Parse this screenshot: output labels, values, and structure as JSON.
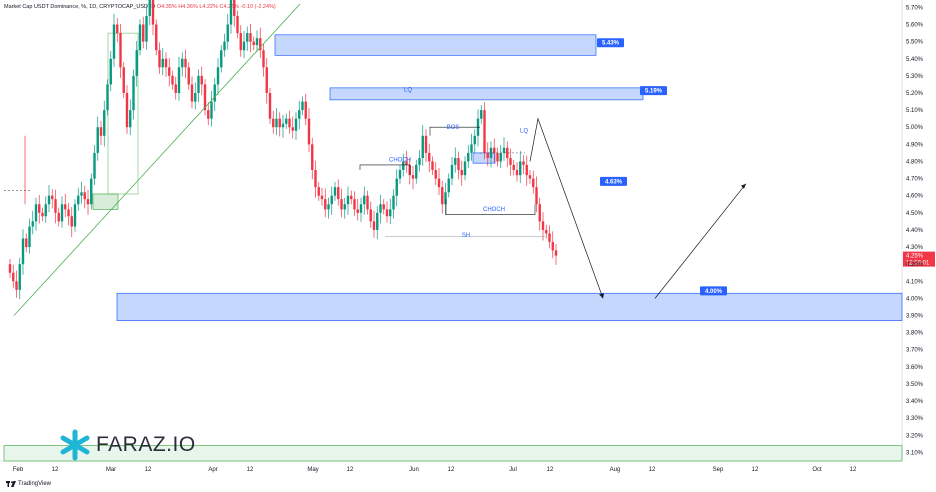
{
  "legend": {
    "title": "Market Cap USDT Dominance, %, 1D, CRYPTOCAP_USDTD",
    "ohlc": "O4.35% H4.36% L4.22% C4.25% -0.10 (-2.24%)"
  },
  "brand": {
    "name": "FARAZ.IO",
    "platform": "TradingView"
  },
  "colors": {
    "up": "#089981",
    "down": "#f23645",
    "zone_fill": "#bbd0fb",
    "zone_stroke": "#2962ff",
    "label_bg": "#2962ff",
    "trendline": "#4caf50"
  },
  "chart_data": {
    "type": "candlestick",
    "title": "Market Cap USDT Dominance, %, 1D, CRYPTOCAP_USDTD",
    "ylim": [
      3.05,
      5.72
    ],
    "y_ticks": [
      "5.70%",
      "5.60%",
      "5.50%",
      "5.40%",
      "5.30%",
      "5.20%",
      "5.10%",
      "5.00%",
      "4.90%",
      "4.80%",
      "4.70%",
      "4.60%",
      "4.50%",
      "4.40%",
      "4.30%",
      "4.20%",
      "4.10%",
      "4.00%",
      "3.90%",
      "3.80%",
      "3.70%",
      "3.60%",
      "3.50%",
      "3.40%",
      "3.30%",
      "3.20%",
      "3.10%"
    ],
    "x_ticks": [
      "Feb",
      "12",
      "Mar",
      "12",
      "Apr",
      "12",
      "May",
      "12",
      "Jun",
      "12",
      "Jul",
      "12",
      "Aug",
      "12",
      "Sep",
      "12",
      "Oct",
      "12"
    ],
    "current_price_label": "4.25%",
    "countdown_label": "12:56:01",
    "closes": [
      4.15,
      4.1,
      4.05,
      4.2,
      4.35,
      4.3,
      4.42,
      4.45,
      4.55,
      4.5,
      4.48,
      4.55,
      4.6,
      4.58,
      4.5,
      4.45,
      4.55,
      4.52,
      4.48,
      4.42,
      4.55,
      4.6,
      4.62,
      4.58,
      4.55,
      4.7,
      4.85,
      5.0,
      4.95,
      5.1,
      5.25,
      5.4,
      5.6,
      5.55,
      5.35,
      5.2,
      5.0,
      5.1,
      5.3,
      5.45,
      5.6,
      5.5,
      5.65,
      5.75,
      5.6,
      5.45,
      5.35,
      5.4,
      5.35,
      5.3,
      5.25,
      5.2,
      5.35,
      5.4,
      5.35,
      5.25,
      5.15,
      5.2,
      5.3,
      5.25,
      5.1,
      5.05,
      5.15,
      5.25,
      5.35,
      5.45,
      5.5,
      5.6,
      5.75,
      5.65,
      5.55,
      5.45,
      5.5,
      5.55,
      5.5,
      5.48,
      5.52,
      5.45,
      5.35,
      5.2,
      5.05,
      5.0,
      5.05,
      5.0,
      5.02,
      5.05,
      5.0,
      4.98,
      5.05,
      5.1,
      5.15,
      5.05,
      4.9,
      4.75,
      4.65,
      4.6,
      4.58,
      4.52,
      4.55,
      4.6,
      4.65,
      4.58,
      4.52,
      4.55,
      4.6,
      4.58,
      4.52,
      4.5,
      4.55,
      4.6,
      4.52,
      4.45,
      4.4,
      4.5,
      4.55,
      4.52,
      4.48,
      4.52,
      4.6,
      4.7,
      4.75,
      4.8,
      4.78,
      4.72,
      4.7,
      4.78,
      4.82,
      4.95,
      4.85,
      4.8,
      4.75,
      4.7,
      4.65,
      4.55,
      4.62,
      4.7,
      4.78,
      4.82,
      4.75,
      4.72,
      4.8,
      4.85,
      4.9,
      4.95,
      5.05,
      5.1,
      4.85,
      4.82,
      4.88,
      4.85,
      4.8,
      4.85,
      4.88,
      4.82,
      4.78,
      4.75,
      4.72,
      4.8,
      4.78,
      4.72,
      4.7,
      4.65,
      4.55,
      4.45,
      4.4,
      4.38,
      4.33,
      4.28,
      4.25
    ],
    "zones": [
      {
        "name": "upper-supply-zone",
        "y_top": 5.54,
        "y_bottom": 5.42,
        "label": "5.43%"
      },
      {
        "name": "liquidity-zone",
        "y_top": 5.23,
        "y_bottom": 5.16,
        "label": "5.19%",
        "tag": "LQ"
      },
      {
        "name": "bos-block",
        "y_top": 4.85,
        "y_bottom": 4.79,
        "label": ""
      },
      {
        "name": "demand-zone",
        "y_top": 4.03,
        "y_bottom": 3.87,
        "label": "4.00%"
      },
      {
        "name": "lower-support-zone",
        "y_top": 3.14,
        "y_bottom": 3.05,
        "label": ""
      }
    ],
    "price_labels": [
      "5.43%",
      "5.19%",
      "4.63%",
      "4.00%"
    ],
    "annotations": [
      "LQ",
      "BOS",
      "LQ",
      "CHOCH",
      "CHOCH",
      "SH"
    ],
    "projected_path": [
      5.05,
      4.0,
      4.0,
      4.67
    ]
  }
}
